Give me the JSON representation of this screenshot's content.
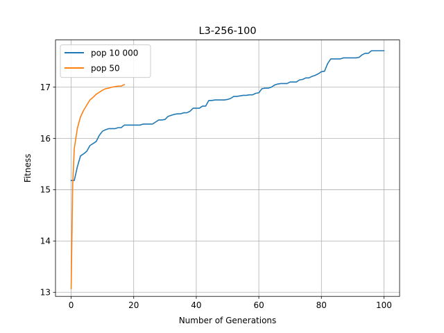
{
  "chart_data": {
    "type": "line",
    "title": "L3-256-100",
    "xlabel": "Number of Generations",
    "ylabel": "Fitness",
    "xlim": [
      -5,
      105
    ],
    "ylim": [
      12.92,
      17.92
    ],
    "xticks": [
      0,
      20,
      40,
      60,
      80,
      100
    ],
    "yticks": [
      13,
      14,
      15,
      16,
      17
    ],
    "grid": true,
    "legend_position": "top-left",
    "series": [
      {
        "name": "pop 10 000",
        "color": "#1f77b4",
        "x": [
          0,
          1,
          2,
          3,
          4,
          5,
          6,
          7,
          8,
          9,
          10,
          11,
          12,
          13,
          14,
          15,
          16,
          17,
          18,
          19,
          20,
          21,
          22,
          23,
          24,
          25,
          26,
          27,
          28,
          29,
          30,
          31,
          32,
          33,
          34,
          35,
          36,
          37,
          38,
          39,
          40,
          41,
          42,
          43,
          44,
          45,
          46,
          47,
          48,
          49,
          50,
          51,
          52,
          53,
          54,
          55,
          56,
          57,
          58,
          59,
          60,
          61,
          62,
          63,
          64,
          65,
          66,
          67,
          68,
          69,
          70,
          71,
          72,
          73,
          74,
          75,
          76,
          77,
          78,
          79,
          80,
          81,
          82,
          83,
          84,
          85,
          86,
          87,
          88,
          89,
          90,
          91,
          92,
          93,
          94,
          95,
          96,
          97,
          98,
          99,
          100
        ],
        "y": [
          15.18,
          15.18,
          15.45,
          15.66,
          15.7,
          15.75,
          15.86,
          15.9,
          15.94,
          16.06,
          16.14,
          16.17,
          16.19,
          16.19,
          16.19,
          16.21,
          16.21,
          16.26,
          16.26,
          16.26,
          16.26,
          16.26,
          16.26,
          16.28,
          16.28,
          16.28,
          16.28,
          16.32,
          16.36,
          16.36,
          16.37,
          16.43,
          16.45,
          16.47,
          16.48,
          16.48,
          16.5,
          16.5,
          16.53,
          16.59,
          16.59,
          16.59,
          16.63,
          16.63,
          16.74,
          16.74,
          16.75,
          16.75,
          16.75,
          16.75,
          16.76,
          16.78,
          16.82,
          16.82,
          16.83,
          16.84,
          16.84,
          16.85,
          16.85,
          16.88,
          16.89,
          16.97,
          16.98,
          16.98,
          17.0,
          17.04,
          17.06,
          17.07,
          17.07,
          17.07,
          17.1,
          17.1,
          17.1,
          17.14,
          17.15,
          17.18,
          17.18,
          17.21,
          17.23,
          17.26,
          17.3,
          17.31,
          17.46,
          17.55,
          17.55,
          17.55,
          17.55,
          17.57,
          17.57,
          17.57,
          17.57,
          17.57,
          17.58,
          17.63,
          17.66,
          17.66,
          17.71,
          17.71,
          17.71,
          17.71,
          17.71
        ]
      },
      {
        "name": "pop 50",
        "color": "#ff7f0e",
        "x": [
          0,
          0.5,
          1,
          2,
          3,
          4,
          5,
          6,
          7,
          8,
          9,
          10,
          11,
          12,
          13,
          14,
          15,
          16,
          17
        ],
        "y": [
          13.07,
          15.1,
          15.8,
          16.2,
          16.42,
          16.55,
          16.65,
          16.75,
          16.8,
          16.86,
          16.9,
          16.94,
          16.97,
          16.98,
          17.0,
          17.01,
          17.02,
          17.02,
          17.05
        ]
      }
    ]
  }
}
